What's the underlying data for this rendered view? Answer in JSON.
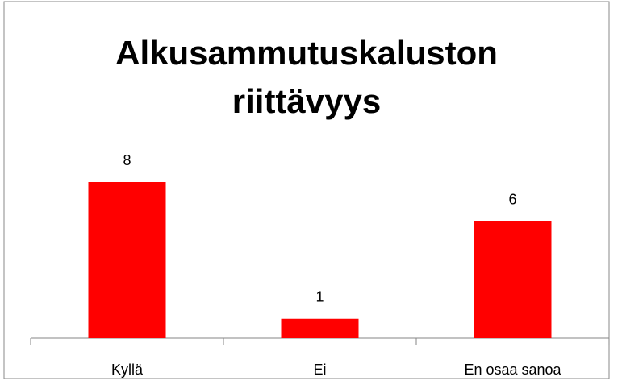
{
  "chart_data": {
    "type": "bar",
    "title": "Alkusammutuskaluston riittävyys",
    "categories": [
      "Kyllä",
      "Ei",
      "En osaa sanoa"
    ],
    "values": [
      8,
      1,
      6
    ],
    "color": "#ff0000"
  }
}
